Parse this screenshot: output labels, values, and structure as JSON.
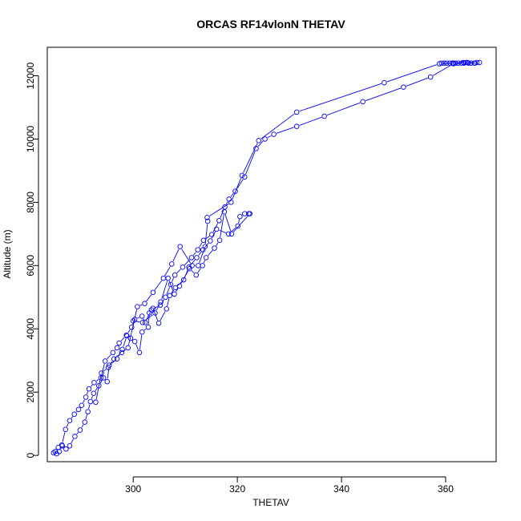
{
  "chart_data": {
    "type": "line",
    "title": "ORCAS RF14vlonN THETAV",
    "xlabel": "THETAV",
    "ylabel": "Altitude (m)",
    "xlim": [
      283.5,
      369.7
    ],
    "ylim": [
      -200,
      12900
    ],
    "x_ticks": [
      300,
      320,
      340,
      360
    ],
    "y_ticks": [
      0,
      2000,
      4000,
      6000,
      8000,
      10000,
      12000
    ],
    "grid": false,
    "legend": "none",
    "color": "#0000FF",
    "series": [
      {
        "points": [
          [
            284.7,
            80
          ],
          [
            285.0,
            120
          ],
          [
            285.3,
            50
          ],
          [
            285.6,
            250
          ],
          [
            286.3,
            330
          ],
          [
            287.0,
            820
          ],
          [
            287.8,
            1100
          ],
          [
            288.7,
            1300
          ],
          [
            289.5,
            1450
          ],
          [
            290.1,
            1580
          ],
          [
            290.9,
            1840
          ],
          [
            291.5,
            2100
          ],
          [
            292.5,
            2300
          ],
          [
            293.8,
            2450
          ],
          [
            294.6,
            2980
          ],
          [
            296.1,
            3250
          ],
          [
            296.9,
            3400
          ],
          [
            297.3,
            3550
          ],
          [
            298.7,
            3800
          ],
          [
            299.7,
            4050
          ],
          [
            300.3,
            4300
          ],
          [
            301.7,
            4400
          ],
          [
            302.3,
            4200
          ],
          [
            303.5,
            4600
          ],
          [
            305.2,
            4750
          ],
          [
            306.2,
            5000
          ],
          [
            307.2,
            5400
          ],
          [
            308.0,
            5700
          ],
          [
            309.5,
            5950
          ],
          [
            311.2,
            6250
          ],
          [
            312.4,
            6500
          ],
          [
            313.5,
            6800
          ],
          [
            315.1,
            6980
          ],
          [
            316.5,
            7420
          ],
          [
            317.6,
            7850
          ],
          [
            318.4,
            8100
          ],
          [
            319.6,
            8350
          ],
          [
            321.4,
            8800
          ],
          [
            323.6,
            9700
          ],
          [
            325.3,
            10000
          ],
          [
            327.0,
            10150
          ],
          [
            331.4,
            10400
          ],
          [
            336.7,
            10720
          ],
          [
            344.1,
            11180
          ],
          [
            351.9,
            11640
          ],
          [
            357.1,
            11960
          ],
          [
            361.5,
            12380
          ],
          [
            363.5,
            12400
          ],
          [
            365.5,
            12400
          ]
        ]
      },
      {
        "points": [
          [
            285.8,
            120
          ],
          [
            286.4,
            300
          ],
          [
            287.1,
            200
          ],
          [
            287.8,
            300
          ],
          [
            288.8,
            600
          ],
          [
            289.8,
            800
          ],
          [
            290.7,
            1050
          ],
          [
            291.3,
            1380
          ],
          [
            291.8,
            1700
          ],
          [
            292.4,
            1960
          ],
          [
            293.4,
            2200
          ],
          [
            294.3,
            2450
          ],
          [
            295.0,
            2330
          ],
          [
            295.4,
            2850
          ],
          [
            296.9,
            3050
          ],
          [
            297.9,
            3350
          ],
          [
            298.8,
            3780
          ],
          [
            299.5,
            3700
          ],
          [
            300.3,
            3600
          ],
          [
            301.2,
            3250
          ],
          [
            301.7,
            3900
          ],
          [
            302.9,
            4050
          ],
          [
            303.1,
            4500
          ],
          [
            303.8,
            4650
          ],
          [
            304.9,
            4180
          ],
          [
            306.4,
            4630
          ],
          [
            307.0,
            5050
          ],
          [
            308.1,
            5300
          ],
          [
            309.7,
            5550
          ],
          [
            310.7,
            5950
          ],
          [
            312.2,
            6250
          ],
          [
            313.4,
            6500
          ],
          [
            314.8,
            6780
          ],
          [
            316.0,
            7150
          ],
          [
            318.3,
            7000
          ],
          [
            320.1,
            7250
          ],
          [
            320.5,
            7550
          ],
          [
            321.4,
            7640
          ],
          [
            322.2,
            7640
          ]
        ]
      },
      {
        "points": [
          [
            292.8,
            1680
          ],
          [
            293.9,
            2600
          ],
          [
            295.2,
            2780
          ],
          [
            296.3,
            3050
          ],
          [
            297.8,
            3250
          ],
          [
            299.0,
            3400
          ],
          [
            300.8,
            4700
          ],
          [
            302.2,
            4800
          ],
          [
            303.8,
            5150
          ],
          [
            305.8,
            5600
          ],
          [
            307.4,
            6050
          ],
          [
            309.0,
            6600
          ],
          [
            311.3,
            6000
          ],
          [
            312.5,
            6000
          ],
          [
            313.8,
            6600
          ],
          [
            314.3,
            7400
          ]
        ]
      },
      {
        "points": [
          [
            300.0,
            4250
          ],
          [
            301.8,
            4200
          ],
          [
            304.2,
            4500
          ],
          [
            305.3,
            4850
          ],
          [
            306.7,
            5600
          ],
          [
            307.9,
            5100
          ],
          [
            308.9,
            5350
          ],
          [
            310.8,
            5900
          ],
          [
            312.1,
            5700
          ],
          [
            313.3,
            6000
          ],
          [
            314.0,
            6250
          ],
          [
            315.6,
            6550
          ],
          [
            316.6,
            6800
          ],
          [
            317.5,
            7700
          ],
          [
            318.9,
            7000
          ],
          [
            322.4,
            7640
          ]
        ]
      },
      {
        "points": [
          [
            314.2,
            7520
          ],
          [
            318.8,
            8000
          ],
          [
            320.9,
            8850
          ],
          [
            324.1,
            9950
          ],
          [
            331.4,
            10850
          ],
          [
            348.2,
            11780
          ],
          [
            358.8,
            12380
          ],
          [
            361.5,
            12400
          ],
          [
            364.2,
            12420
          ],
          [
            366.0,
            12420
          ]
        ]
      },
      {
        "points": [
          [
            359.2,
            12400
          ],
          [
            359.7,
            12400
          ],
          [
            360.2,
            12400
          ],
          [
            360.8,
            12400
          ],
          [
            361.3,
            12400
          ],
          [
            361.9,
            12400
          ],
          [
            362.4,
            12400
          ],
          [
            363.0,
            12400
          ],
          [
            363.4,
            12420
          ],
          [
            363.9,
            12420
          ],
          [
            364.4,
            12400
          ],
          [
            364.9,
            12400
          ],
          [
            365.6,
            12400
          ],
          [
            366.5,
            12420
          ]
        ]
      }
    ]
  }
}
